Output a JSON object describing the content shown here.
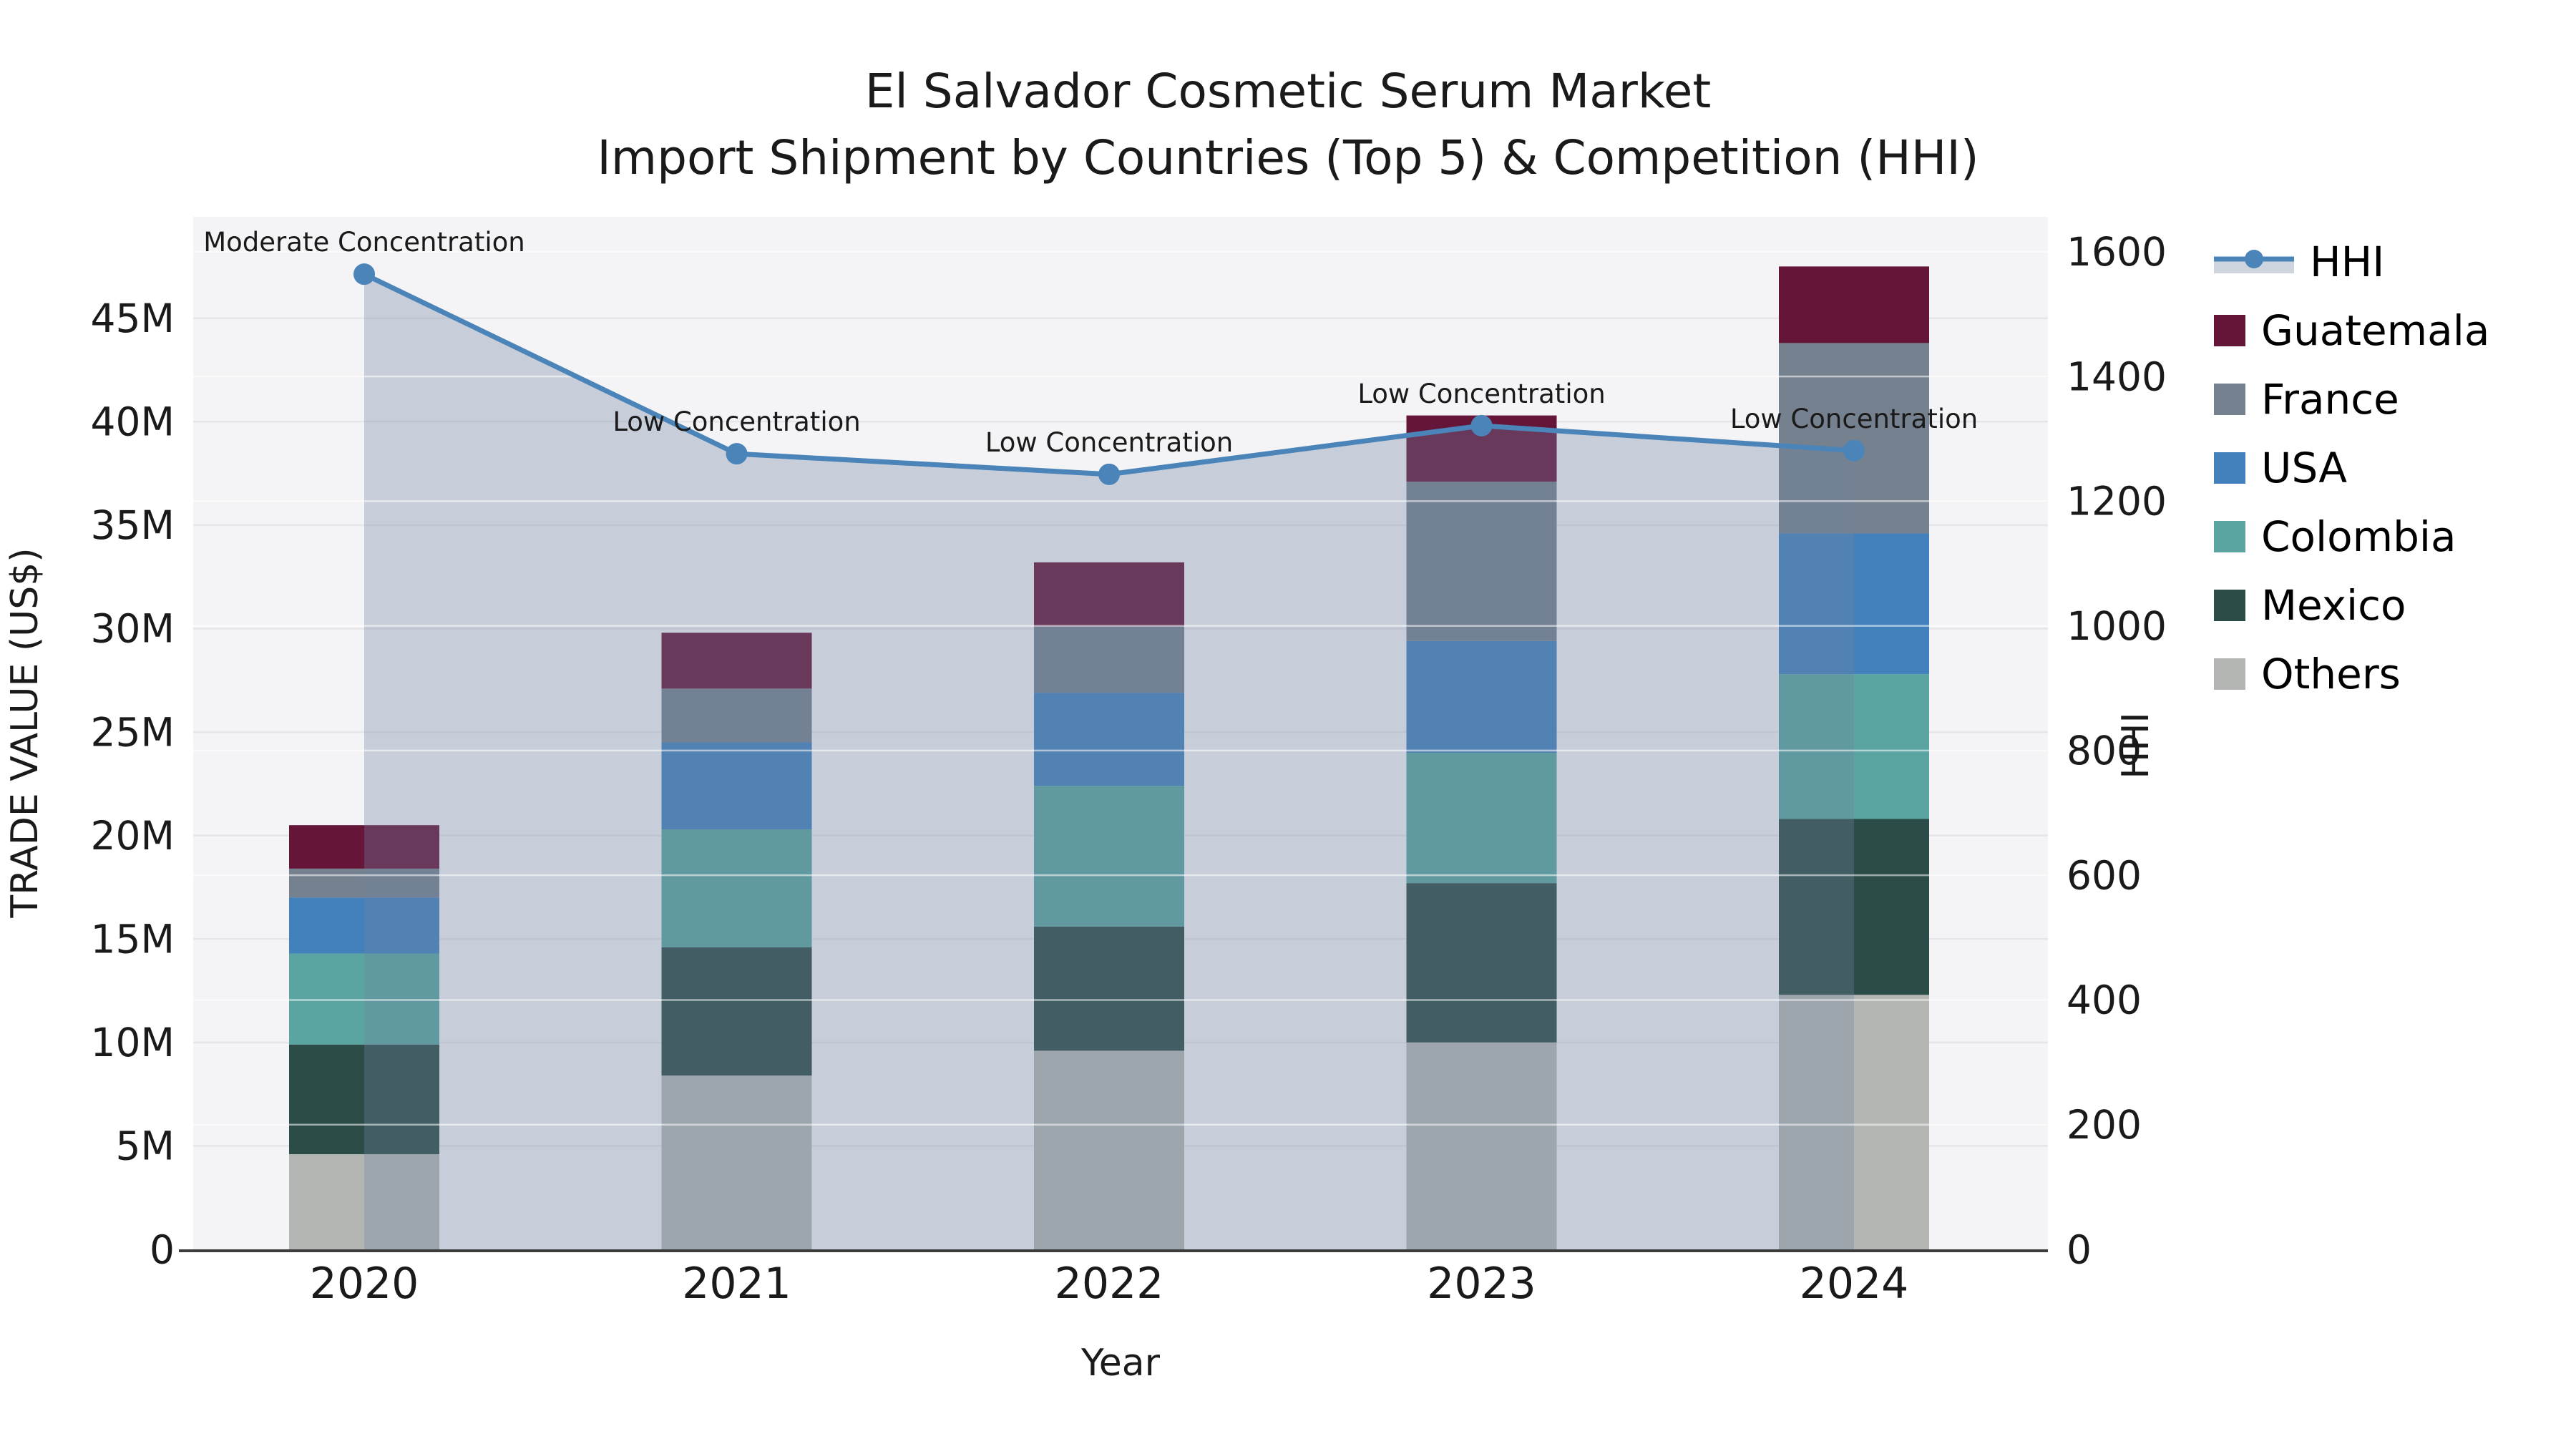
{
  "title": {
    "line1": "El Salvador Cosmetic Serum Market",
    "line2": "Import Shipment by Countries (Top 5) & Competition (HHI)"
  },
  "axes": {
    "x_label": "Year",
    "y_left_label": "TRADE VALUE (US$)",
    "y_right_label": "HHI",
    "x_ticks": [
      "2020",
      "2021",
      "2022",
      "2023",
      "2024"
    ],
    "y_left_ticks": [
      "0",
      "5M",
      "10M",
      "15M",
      "20M",
      "25M",
      "30M",
      "35M",
      "40M",
      "45M"
    ],
    "y_right_ticks": [
      "0",
      "200",
      "400",
      "600",
      "800",
      "1000",
      "1200",
      "1400",
      "1600"
    ]
  },
  "legend": {
    "items": [
      {
        "label": "HHI",
        "type": "line",
        "color": "#4A84B8",
        "band_color": "#CFD5DF"
      },
      {
        "label": "Guatemala",
        "type": "swatch",
        "color": "#651538"
      },
      {
        "label": "France",
        "type": "swatch",
        "color": "#75818F"
      },
      {
        "label": "USA",
        "type": "swatch",
        "color": "#4381BC"
      },
      {
        "label": "Colombia",
        "type": "swatch",
        "color": "#5AA4A1"
      },
      {
        "label": "Mexico",
        "type": "swatch",
        "color": "#2C4C47"
      },
      {
        "label": "Others",
        "type": "swatch",
        "color": "#B4B6B4"
      }
    ]
  },
  "chart_data": {
    "type": "combo_stacked_bar_line",
    "title": "El Salvador Cosmetic Serum Market Import Shipment by Countries (Top 5) & Competition (HHI)",
    "categories": [
      "2020",
      "2021",
      "2022",
      "2023",
      "2024"
    ],
    "unit": "million US$",
    "series": [
      {
        "name": "Guatemala",
        "color": "#651538",
        "values": [
          2.1,
          2.7,
          3.1,
          3.2,
          3.7
        ]
      },
      {
        "name": "France",
        "color": "#75818F",
        "values": [
          1.4,
          2.6,
          3.2,
          7.7,
          9.2
        ]
      },
      {
        "name": "USA",
        "color": "#4381BC",
        "values": [
          2.7,
          4.2,
          4.5,
          5.4,
          6.8
        ]
      },
      {
        "name": "Colombia",
        "color": "#5AA4A1",
        "values": [
          4.4,
          5.7,
          6.8,
          6.3,
          7.0
        ]
      },
      {
        "name": "Mexico",
        "color": "#2C4C47",
        "values": [
          5.3,
          6.2,
          6.0,
          7.7,
          8.5
        ]
      },
      {
        "name": "Others",
        "color": "#B4B6B4",
        "values": [
          4.6,
          8.4,
          9.6,
          10.0,
          12.3
        ]
      }
    ],
    "stack_order_bottom_to_top": [
      "Others",
      "Mexico",
      "Colombia",
      "USA",
      "France",
      "Guatemala"
    ],
    "bar_totals_millions": [
      20.5,
      29.8,
      33.2,
      40.3,
      47.5
    ],
    "line_series": {
      "name": "HHI",
      "color": "#4A84B8",
      "area_fill_color": "rgba(112,130,160,0.33)",
      "values": [
        1564,
        1276,
        1243,
        1321,
        1281
      ]
    },
    "annotations": [
      {
        "x": "2020",
        "text": "Moderate Concentration"
      },
      {
        "x": "2021",
        "text": "Low Concentration"
      },
      {
        "x": "2022",
        "text": "Low Concentration"
      },
      {
        "x": "2023",
        "text": "Low Concentration"
      },
      {
        "x": "2024",
        "text": "Low Concentration"
      }
    ],
    "xlabel": "Year",
    "ylabel_left": "TRADE VALUE (US$)",
    "ylabel_right": "HHI",
    "ylim_left_millions": [
      0,
      49.9
    ],
    "yticks_left_millions": [
      0,
      5,
      10,
      15,
      20,
      25,
      30,
      35,
      40,
      45
    ],
    "ylim_right": [
      0,
      1656
    ],
    "yticks_right": [
      0,
      200,
      400,
      600,
      800,
      1000,
      1200,
      1400,
      1600
    ],
    "grid": true,
    "legend_position": "right",
    "plot_bg_color": "#F4F3F5",
    "grid_color_left": "#E6E5E9",
    "grid_color_right": "rgba(255,255,255,0.55)",
    "axis_line_color": "#3C3C3C"
  }
}
